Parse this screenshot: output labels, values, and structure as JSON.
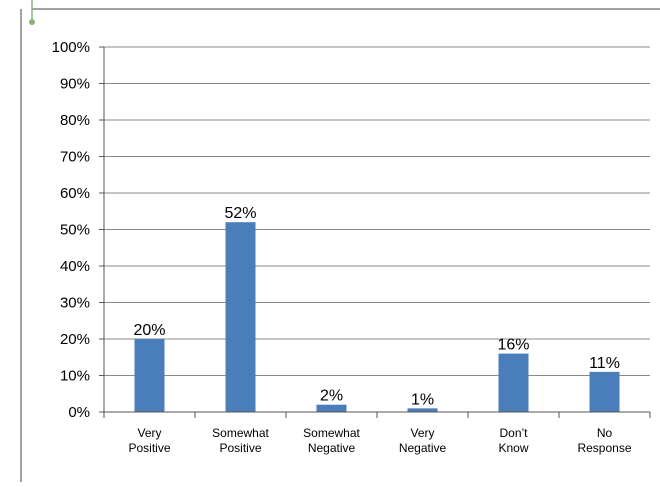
{
  "chart_data": {
    "type": "bar",
    "categories": [
      [
        "Very",
        "Positive"
      ],
      [
        "Somewhat",
        "Positive"
      ],
      [
        "Somewhat",
        "Negative"
      ],
      [
        "Very",
        "Negative"
      ],
      [
        "Don’t",
        "Know"
      ],
      [
        "No",
        "Response"
      ]
    ],
    "values": [
      20,
      52,
      2,
      1,
      16,
      11
    ],
    "data_labels": [
      "20%",
      "52%",
      "2%",
      "1%",
      "16%",
      "11%"
    ],
    "y_ticks": [
      "0%",
      "10%",
      "20%",
      "30%",
      "40%",
      "50%",
      "60%",
      "70%",
      "80%",
      "90%",
      "100%"
    ],
    "ylim": [
      0,
      100
    ],
    "grid": true,
    "legend": false
  },
  "colors": {
    "bar": "#4a7ebb",
    "grid": "#888888",
    "axis": "#555555",
    "frame": "#444444",
    "accent_dot": "#8cb37a"
  }
}
